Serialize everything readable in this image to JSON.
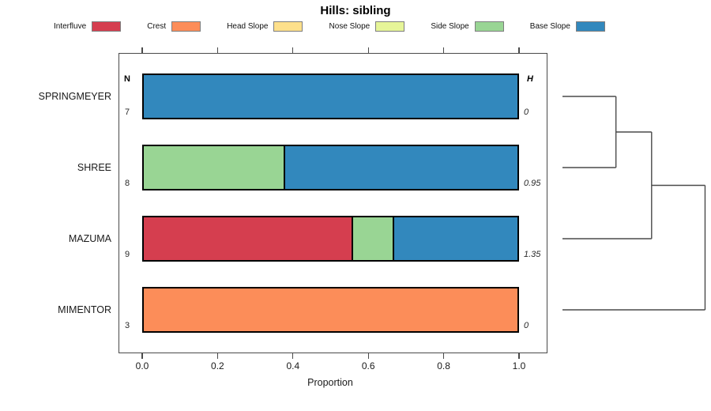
{
  "title": "Hills: sibling",
  "legend": {
    "items": [
      {
        "label": "Interfluve",
        "color": "#D53E4F"
      },
      {
        "label": "Crest",
        "color": "#FC8D59"
      },
      {
        "label": "Head Slope",
        "color": "#FEE08B"
      },
      {
        "label": "Nose Slope",
        "color": "#E6F598"
      },
      {
        "label": "Side Slope",
        "color": "#99D594"
      },
      {
        "label": "Base Slope",
        "color": "#3288BD"
      }
    ]
  },
  "columns": {
    "n_header": "N",
    "h_header": "H"
  },
  "axis": {
    "label": "Proportion",
    "ticks": [
      "0.0",
      "0.2",
      "0.4",
      "0.6",
      "0.8",
      "1.0"
    ],
    "tick_values": [
      0,
      0.2,
      0.4,
      0.6,
      0.8,
      1.0
    ]
  },
  "rows": [
    {
      "name": "SPRINGMEYER",
      "n": "7",
      "h": "0",
      "segments": [
        {
          "class": "Base Slope",
          "from": 0,
          "to": 1
        }
      ]
    },
    {
      "name": "SHREE",
      "n": "8",
      "h": "0.95",
      "segments": [
        {
          "class": "Side Slope",
          "from": 0,
          "to": 0.375
        },
        {
          "class": "Base Slope",
          "from": 0.375,
          "to": 1
        }
      ]
    },
    {
      "name": "MAZUMA",
      "n": "9",
      "h": "1.35",
      "segments": [
        {
          "class": "Interfluve",
          "from": 0,
          "to": 0.556
        },
        {
          "class": "Side Slope",
          "from": 0.556,
          "to": 0.667
        },
        {
          "class": "Base Slope",
          "from": 0.667,
          "to": 1
        }
      ]
    },
    {
      "name": "MIMENTOR",
      "n": "3",
      "h": "0",
      "segments": [
        {
          "class": "Crest",
          "from": 0,
          "to": 1
        }
      ]
    }
  ],
  "dendrogram": {
    "merges": [
      {
        "a": "SPRINGMEYER",
        "b": "SHREE",
        "height": 0.36
      },
      {
        "a": "merge0",
        "b": "MAZUMA",
        "height": 0.6
      },
      {
        "a": "merge1",
        "b": "MIMENTOR",
        "height": 0.96
      }
    ]
  },
  "chart_data": {
    "type": "bar",
    "orientation": "horizontal",
    "stacked": true,
    "title": "Hills: sibling",
    "xlabel": "Proportion",
    "xlim": [
      0,
      1
    ],
    "x_ticks": [
      0,
      0.2,
      0.4,
      0.6,
      0.8,
      1.0
    ],
    "categories": [
      "SPRINGMEYER",
      "SHREE",
      "MAZUMA",
      "MIMENTOR"
    ],
    "n_values": [
      7,
      8,
      9,
      3
    ],
    "h_values": [
      0,
      0.95,
      1.35,
      0
    ],
    "legend_position": "top",
    "series": [
      {
        "name": "Interfluve",
        "color": "#D53E4F",
        "values": [
          0,
          0,
          0.556,
          0
        ]
      },
      {
        "name": "Crest",
        "color": "#FC8D59",
        "values": [
          0,
          0,
          0,
          1
        ]
      },
      {
        "name": "Head Slope",
        "color": "#FEE08B",
        "values": [
          0,
          0,
          0,
          0
        ]
      },
      {
        "name": "Nose Slope",
        "color": "#E6F598",
        "values": [
          0,
          0,
          0,
          0
        ]
      },
      {
        "name": "Side Slope",
        "color": "#99D594",
        "values": [
          0,
          0.375,
          0.111,
          0
        ]
      },
      {
        "name": "Base Slope",
        "color": "#3288BD",
        "values": [
          1,
          0.625,
          0.333,
          0
        ]
      }
    ],
    "dendrogram_merge_order": [
      [
        "SPRINGMEYER",
        "SHREE"
      ],
      [
        "(SPRINGMEYER,SHREE)",
        "MAZUMA"
      ],
      [
        "((SPRINGMEYER,SHREE),MAZUMA)",
        "MIMENTOR"
      ]
    ],
    "dendrogram_relative_heights": [
      0.36,
      0.6,
      0.96
    ]
  }
}
